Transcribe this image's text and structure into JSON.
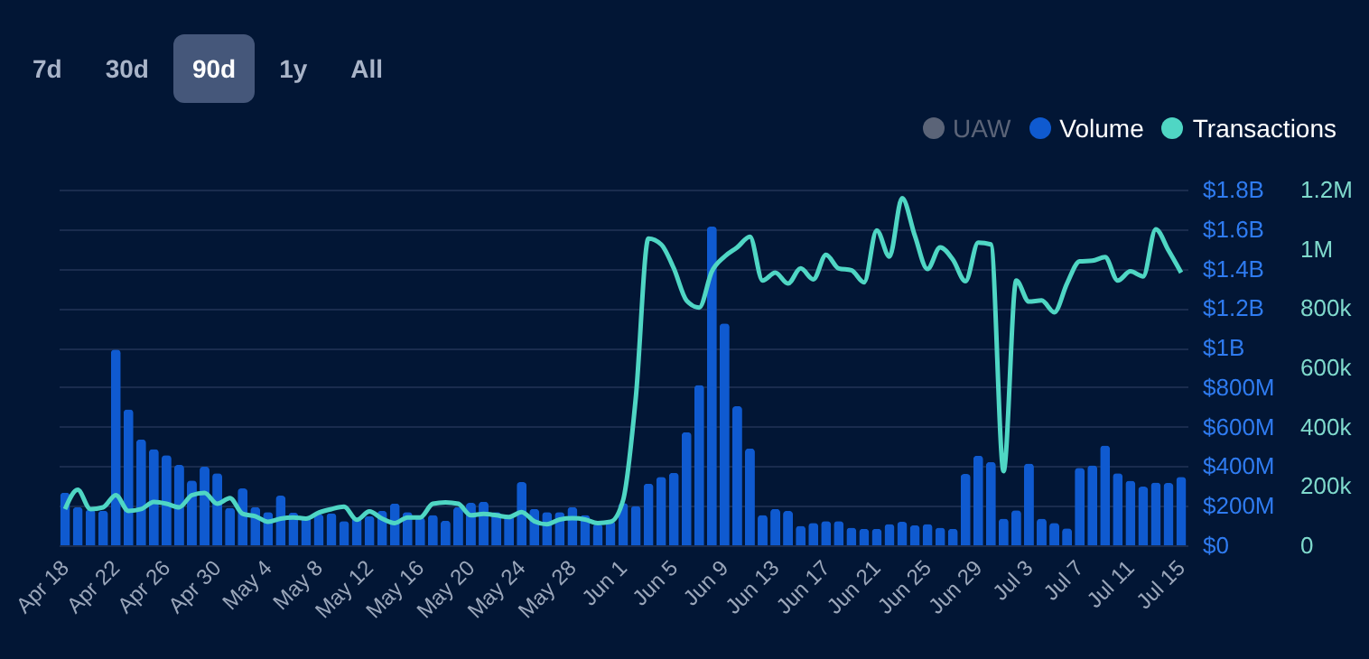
{
  "chart_data": {
    "type": "bar",
    "annotations": [
      "7d",
      "30d",
      "90d",
      "1y",
      "All"
    ],
    "categories": [
      "Apr 18",
      null,
      null,
      null,
      "Apr 22",
      null,
      null,
      null,
      "Apr 26",
      null,
      null,
      null,
      "Apr 30",
      null,
      null,
      null,
      "May 4",
      null,
      null,
      null,
      "May 8",
      null,
      null,
      null,
      "May 12",
      null,
      null,
      null,
      "May 16",
      null,
      null,
      null,
      "May 20",
      null,
      null,
      null,
      "May 24",
      null,
      null,
      null,
      "May 28",
      null,
      null,
      null,
      "Jun 1",
      null,
      null,
      null,
      "Jun 5",
      null,
      null,
      null,
      "Jun 9",
      null,
      null,
      null,
      "Jun 13",
      null,
      null,
      null,
      "Jun 17",
      null,
      null,
      null,
      "Jun 21",
      null,
      null,
      null,
      "Jun 25",
      null,
      null,
      null,
      "Jun 29",
      null,
      null,
      null,
      "Jul 3",
      null,
      null,
      null,
      "Jul 7",
      null,
      null,
      null,
      "Jul 11",
      null,
      null,
      null,
      "Jul 15"
    ],
    "series": [
      {
        "name": "UAW",
        "type": "line",
        "color": "#5b6478",
        "values": [
          null,
          null,
          null,
          null,
          null,
          null,
          null,
          null,
          null,
          null,
          null,
          null,
          null,
          null,
          null,
          null,
          null,
          null,
          null,
          null,
          null,
          null,
          null,
          null,
          null,
          null,
          null,
          null,
          null,
          null,
          null,
          null,
          null,
          null,
          null,
          null,
          null,
          null,
          null,
          null,
          null,
          null,
          null,
          null,
          null,
          null,
          null,
          null,
          null,
          null,
          null,
          null,
          null,
          null,
          null,
          null,
          null,
          null,
          null,
          null,
          null,
          null,
          null,
          null,
          null,
          null,
          null,
          null,
          null,
          null,
          null,
          null,
          null,
          null,
          null,
          null,
          null,
          null,
          null,
          null,
          null,
          null,
          null,
          null,
          null,
          null,
          null,
          null,
          null
        ]
      },
      {
        "name": "Volume",
        "type": "bar",
        "color": "#0f5ad0",
        "values": [
          266000000,
          193000000,
          180000000,
          175000000,
          990000000,
          688000000,
          536000000,
          487000000,
          456000000,
          407000000,
          328000000,
          398000000,
          364000000,
          190000000,
          288000000,
          193000000,
          168000000,
          251000000,
          165000000,
          141000000,
          156000000,
          162000000,
          122000000,
          141000000,
          147000000,
          174000000,
          211000000,
          168000000,
          141000000,
          153000000,
          125000000,
          193000000,
          215000000,
          220000000,
          168000000,
          153000000,
          320000000,
          184000000,
          168000000,
          168000000,
          193000000,
          153000000,
          107000000,
          122000000,
          214000000,
          199000000,
          312000000,
          346000000,
          367000000,
          572000000,
          811000000,
          1613000000,
          1123000000,
          704000000,
          490000000,
          153000000,
          184000000,
          174000000,
          98000000,
          113000000,
          122000000,
          122000000,
          89000000,
          83000000,
          83000000,
          107000000,
          119000000,
          101000000,
          107000000,
          89000000,
          83000000,
          361000000,
          453000000,
          422000000,
          135000000,
          177000000,
          413000000,
          135000000,
          113000000,
          86000000,
          392000000,
          404000000,
          505000000,
          364000000,
          327000000,
          297000000,
          318000000,
          315000000,
          346000000
        ]
      },
      {
        "name": "Transactions",
        "type": "line",
        "axis": "y2",
        "color": "#4fd6c4",
        "values": [
          122000,
          187000,
          122000,
          128000,
          169000,
          116000,
          122000,
          146000,
          140000,
          128000,
          169000,
          177000,
          140000,
          159000,
          106000,
          98000,
          79000,
          90000,
          94000,
          90000,
          110000,
          122000,
          130000,
          86000,
          114000,
          90000,
          75000,
          94000,
          94000,
          140000,
          145000,
          140000,
          101000,
          106000,
          101000,
          95000,
          112000,
          81000,
          71000,
          87000,
          91000,
          87000,
          75000,
          79000,
          152000,
          497000,
          1035000,
          1015000,
          934000,
          826000,
          802000,
          924000,
          974000,
          1005000,
          1041000,
          893000,
          920000,
          883000,
          934000,
          897000,
          980000,
          934000,
          928000,
          887000,
          1062000,
          974000,
          1171000,
          1045000,
          932000,
          1005000,
          964000,
          891000,
          1021000,
          1015000,
          250000,
          893000,
          822000,
          826000,
          786000,
          883000,
          958000,
          960000,
          972000,
          893000,
          924000,
          907000,
          1066000,
          995000,
          920000
        ]
      }
    ],
    "ylim": [
      0,
      1800000000
    ],
    "yticks": [
      {
        "value": 0,
        "label": "$0"
      },
      {
        "value": 200000000,
        "label": "$200M"
      },
      {
        "value": 400000000,
        "label": "$400M"
      },
      {
        "value": 600000000,
        "label": "$600M"
      },
      {
        "value": 800000000,
        "label": "$800M"
      },
      {
        "value": 1000000000,
        "label": "$1B"
      },
      {
        "value": 1200000000,
        "label": "$1.2B"
      },
      {
        "value": 1400000000,
        "label": "$1.4B"
      },
      {
        "value": 1600000000,
        "label": "$1.6B"
      },
      {
        "value": 1800000000,
        "label": "$1.8B"
      }
    ],
    "y2lim": [
      0,
      1200000
    ],
    "y2ticks": [
      {
        "value": 0,
        "label": "0"
      },
      {
        "value": 200000,
        "label": "200k"
      },
      {
        "value": 400000,
        "label": "400k"
      },
      {
        "value": 600000,
        "label": "600k"
      },
      {
        "value": 800000,
        "label": "800k"
      },
      {
        "value": 1000000,
        "label": "1M"
      },
      {
        "value": 1200000,
        "label": "1.2M"
      }
    ],
    "grid": "y",
    "legend": "top right"
  }
}
